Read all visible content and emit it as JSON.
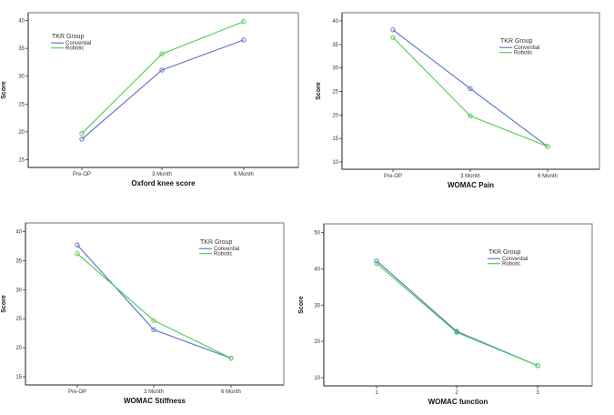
{
  "chart_data": [
    {
      "type": "line",
      "title": "",
      "xlabel": "Oxford knee score",
      "ylabel": "Score",
      "categories": [
        "Pre-OP",
        "3 Month",
        "6 Month"
      ],
      "ylim": [
        14,
        41.5
      ],
      "yticks": [
        15,
        20,
        25,
        30,
        35,
        40
      ],
      "legend": {
        "title": "TKR Group",
        "position": "top-left"
      },
      "grid": false,
      "series": [
        {
          "name": "Convential",
          "color": "#5b6fc4",
          "values": [
            18.7,
            31.1,
            36.5
          ]
        },
        {
          "name": "Robotic",
          "color": "#4ccc4c",
          "values": [
            19.7,
            34.0,
            39.8
          ]
        }
      ]
    },
    {
      "type": "line",
      "title": "",
      "xlabel": "WOMAC Pain",
      "ylabel": "Score",
      "categories": [
        "Pre-OP",
        "3 Month",
        "6 Month"
      ],
      "ylim": [
        9,
        41
      ],
      "yticks": [
        10,
        15,
        20,
        25,
        30,
        35,
        40
      ],
      "legend": {
        "title": "TKR Group",
        "position": "top-right"
      },
      "grid": false,
      "series": [
        {
          "name": "Convential",
          "color": "#5b6fc4",
          "values": [
            38.1,
            25.6,
            13.3
          ]
        },
        {
          "name": "Robotic",
          "color": "#4ccc4c",
          "values": [
            36.5,
            19.8,
            13.3
          ]
        }
      ]
    },
    {
      "type": "line",
      "title": "",
      "xlabel": "WOMAC Stiffness",
      "ylabel": "Score",
      "categories": [
        "Pre-OP",
        "3 Month",
        "6 Month"
      ],
      "ylim": [
        14,
        41.5
      ],
      "yticks": [
        15,
        20,
        25,
        30,
        35,
        40
      ],
      "legend": {
        "title": "TKR Group",
        "position": "top-right"
      },
      "grid": false,
      "series": [
        {
          "name": "Convential",
          "color": "#5b6fc4",
          "values": [
            37.7,
            23.1,
            18.2
          ]
        },
        {
          "name": "Robotic",
          "color": "#4ccc4c",
          "values": [
            36.2,
            24.7,
            18.2
          ]
        }
      ]
    },
    {
      "type": "line",
      "title": "",
      "xlabel": "WOMAC function",
      "ylabel": "Score",
      "categories": [
        "1",
        "2",
        "3"
      ],
      "ylim": [
        8,
        52
      ],
      "yticks": [
        10,
        20,
        30,
        40,
        50
      ],
      "legend": {
        "title": "TKR Group",
        "position": "top-right"
      },
      "grid": false,
      "series": [
        {
          "name": "Convential",
          "color": "#5b6fc4",
          "values": [
            42.2,
            22.8,
            13.3
          ]
        },
        {
          "name": "Robotic",
          "color": "#4ccc4c",
          "values": [
            41.5,
            22.5,
            13.3
          ]
        }
      ]
    }
  ]
}
